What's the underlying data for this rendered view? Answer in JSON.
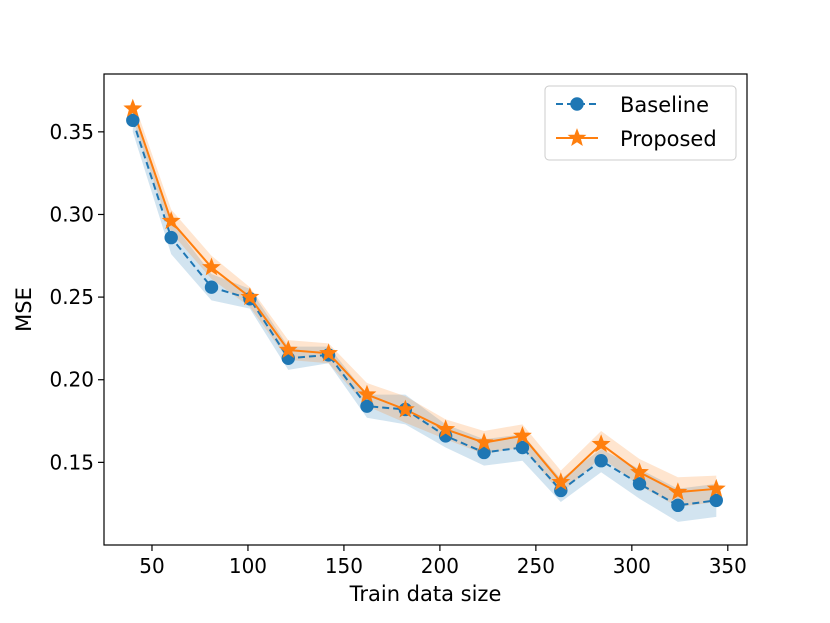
{
  "chart_data": {
    "type": "line",
    "title": "",
    "xlabel": "Train data size",
    "ylabel": "MSE",
    "xlim": [
      25,
      360
    ],
    "ylim": [
      0.1,
      0.385
    ],
    "xticks": [
      50,
      100,
      150,
      200,
      250,
      300,
      350
    ],
    "yticks": [
      0.15,
      0.2,
      0.25,
      0.3,
      0.35
    ],
    "x": [
      40,
      60,
      81,
      101,
      121,
      142,
      162,
      182,
      203,
      223,
      243,
      263,
      284,
      304,
      324,
      344
    ],
    "legend_position": "top-right",
    "series": [
      {
        "name": "Baseline",
        "color": "#1f77b4",
        "linestyle": "dashed",
        "marker": "circle",
        "values": [
          0.357,
          0.286,
          0.256,
          0.249,
          0.213,
          0.215,
          0.184,
          0.182,
          0.166,
          0.156,
          0.159,
          0.133,
          0.151,
          0.137,
          0.124,
          0.127
        ],
        "band_lower": [
          0.35,
          0.276,
          0.248,
          0.243,
          0.206,
          0.21,
          0.177,
          0.173,
          0.159,
          0.148,
          0.151,
          0.126,
          0.144,
          0.128,
          0.114,
          0.117
        ],
        "band_upper": [
          0.364,
          0.296,
          0.264,
          0.255,
          0.22,
          0.22,
          0.191,
          0.191,
          0.173,
          0.164,
          0.167,
          0.14,
          0.158,
          0.146,
          0.134,
          0.137
        ]
      },
      {
        "name": "Proposed",
        "color": "#ff7f0e",
        "linestyle": "solid",
        "marker": "star",
        "values": [
          0.364,
          0.296,
          0.268,
          0.25,
          0.218,
          0.216,
          0.191,
          0.182,
          0.17,
          0.162,
          0.166,
          0.138,
          0.161,
          0.144,
          0.132,
          0.134
        ],
        "band_lower": [
          0.358,
          0.289,
          0.261,
          0.244,
          0.212,
          0.21,
          0.184,
          0.174,
          0.164,
          0.155,
          0.159,
          0.131,
          0.153,
          0.136,
          0.123,
          0.126
        ],
        "band_upper": [
          0.37,
          0.303,
          0.275,
          0.256,
          0.224,
          0.222,
          0.198,
          0.19,
          0.176,
          0.169,
          0.173,
          0.145,
          0.169,
          0.152,
          0.141,
          0.142
        ]
      }
    ]
  }
}
